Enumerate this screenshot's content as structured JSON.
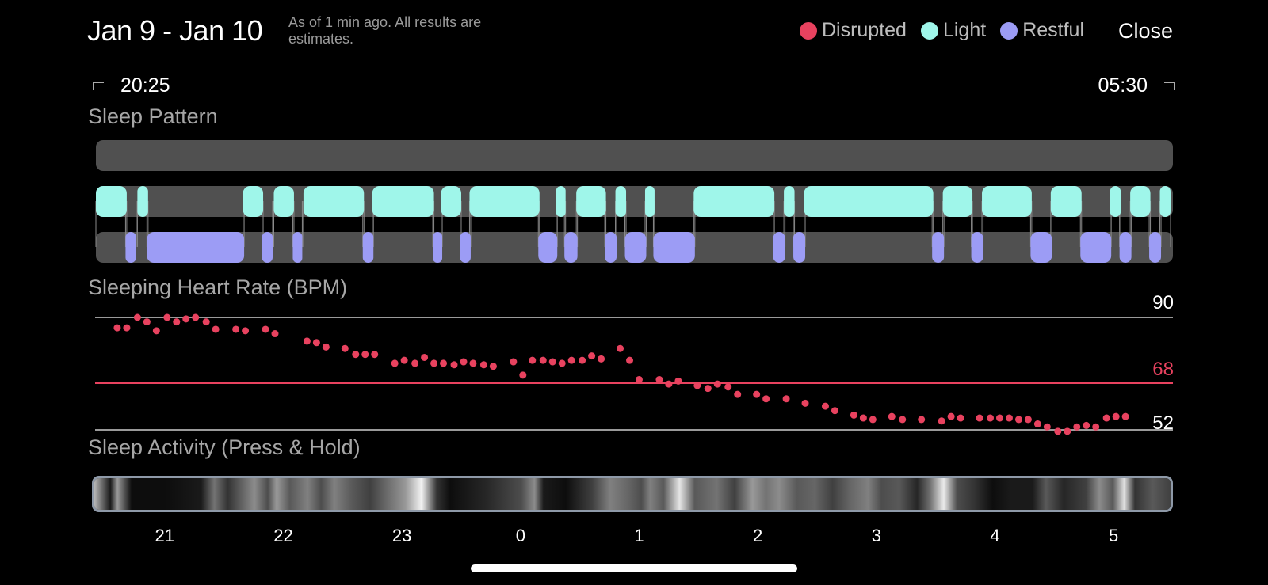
{
  "header": {
    "date_range": "Jan 9 - Jan 10",
    "as_of": "As of 1 min ago. All results are estimates.",
    "close_label": "Close"
  },
  "legend": [
    {
      "label": "Disrupted",
      "color": "#e8425f"
    },
    {
      "label": "Light",
      "color": "#9ff6ea"
    },
    {
      "label": "Restful",
      "color": "#9c9cf5"
    }
  ],
  "time_range": {
    "start": "20:25",
    "end": "05:30"
  },
  "sections": {
    "sleep_pattern": "Sleep Pattern",
    "heart_rate": "Sleeping Heart Rate (BPM)",
    "activity": "Sleep Activity (Press & Hold)"
  },
  "colors": {
    "track": "#505050",
    "light": "#9ff6ea",
    "restful": "#9c9cf5",
    "disrupted": "#e8425f",
    "avg_line": "#e8425f",
    "ref_line": "#9a9a9a"
  },
  "sleep_pattern": {
    "time_start_h": 20.42,
    "time_end_h": 29.5,
    "light": [
      [
        20.42,
        20.68
      ],
      [
        20.77,
        20.86
      ],
      [
        21.66,
        21.83
      ],
      [
        21.92,
        22.09
      ],
      [
        22.17,
        22.68
      ],
      [
        22.75,
        23.27
      ],
      [
        23.33,
        23.5
      ],
      [
        23.57,
        24.16
      ],
      [
        24.3,
        24.38
      ],
      [
        24.47,
        24.72
      ],
      [
        24.8,
        24.89
      ],
      [
        25.05,
        25.13
      ],
      [
        25.46,
        26.14
      ],
      [
        26.22,
        26.31
      ],
      [
        26.39,
        27.48
      ],
      [
        27.56,
        27.81
      ],
      [
        27.89,
        28.31
      ],
      [
        28.47,
        28.73
      ],
      [
        28.97,
        29.06
      ],
      [
        29.14,
        29.31
      ],
      [
        29.39,
        29.48
      ]
    ],
    "restful": [
      [
        20.67,
        20.76
      ],
      [
        20.85,
        21.67
      ],
      [
        21.82,
        21.91
      ],
      [
        22.08,
        22.16
      ],
      [
        22.67,
        22.76
      ],
      [
        23.26,
        23.34
      ],
      [
        23.49,
        23.58
      ],
      [
        24.15,
        24.31
      ],
      [
        24.37,
        24.48
      ],
      [
        24.71,
        24.81
      ],
      [
        24.88,
        25.06
      ],
      [
        25.12,
        25.47
      ],
      [
        26.13,
        26.23
      ],
      [
        26.3,
        26.4
      ],
      [
        27.47,
        27.57
      ],
      [
        27.8,
        27.9
      ],
      [
        28.3,
        28.48
      ],
      [
        28.72,
        28.98
      ],
      [
        29.05,
        29.15
      ],
      [
        29.3,
        29.4
      ]
    ]
  },
  "chart_data": {
    "type": "scatter",
    "title": "Sleeping Heart Rate (BPM)",
    "xlabel": "",
    "ylabel": "",
    "x_unit": "hour of day (values above 24 are after midnight)",
    "x_range": [
      20.42,
      29.5
    ],
    "y_reference_lines": [
      90,
      68,
      52
    ],
    "y_reference_labels": [
      "90",
      "68",
      "52"
    ],
    "average": 68,
    "x_ticks": [
      "21",
      "22",
      "23",
      "0",
      "1",
      "2",
      "3",
      "4",
      "5"
    ],
    "x_tick_values": [
      21,
      22,
      23,
      24,
      25,
      26,
      27,
      28,
      29
    ],
    "x": [
      20.6,
      20.68,
      20.77,
      20.85,
      20.93,
      21.02,
      21.1,
      21.18,
      21.26,
      21.35,
      21.43,
      21.6,
      21.68,
      21.85,
      21.93,
      22.2,
      22.28,
      22.36,
      22.52,
      22.61,
      22.69,
      22.77,
      22.94,
      23.02,
      23.11,
      23.19,
      23.27,
      23.35,
      23.44,
      23.52,
      23.6,
      23.69,
      23.77,
      23.94,
      24.02,
      24.1,
      24.19,
      24.27,
      24.35,
      24.43,
      24.52,
      24.6,
      24.68,
      24.84,
      24.92,
      25.0,
      25.17,
      25.25,
      25.33,
      25.49,
      25.58,
      25.66,
      25.75,
      25.83,
      25.99,
      26.07,
      26.24,
      26.4,
      26.57,
      26.65,
      26.81,
      26.89,
      26.97,
      27.13,
      27.22,
      27.38,
      27.55,
      27.63,
      27.71,
      27.87,
      27.96,
      28.04,
      28.12,
      28.2,
      28.28,
      28.36,
      28.44,
      28.53,
      28.61,
      28.69,
      28.77,
      28.85,
      28.94,
      29.02,
      29.1
    ],
    "y": [
      86.5,
      86.5,
      90,
      88.5,
      85.5,
      90,
      88.5,
      89.5,
      90,
      88.5,
      86,
      86,
      85.5,
      86,
      84.5,
      82,
      81.5,
      80,
      79.5,
      77.5,
      77.5,
      77.5,
      74.5,
      75.5,
      74.5,
      76.5,
      74.5,
      74.5,
      74,
      75,
      74.5,
      74,
      73.5,
      75,
      70.5,
      75.5,
      75.5,
      75,
      74.5,
      75.5,
      75.5,
      77,
      76,
      79.5,
      75.5,
      69,
      69,
      67.5,
      68.5,
      67,
      66,
      67.5,
      66.5,
      64,
      64,
      62.5,
      62.5,
      61,
      60,
      58.5,
      57,
      56,
      55.5,
      56.5,
      55.5,
      55.5,
      55,
      56.5,
      56,
      56,
      56,
      56,
      56,
      55.5,
      55.5,
      54,
      53,
      51.5,
      51.5,
      53,
      53.5,
      53,
      56,
      56.5,
      56.5
    ]
  },
  "activity_ticks": [
    "21",
    "22",
    "23",
    "0",
    "1",
    "2",
    "3",
    "4",
    "5"
  ]
}
